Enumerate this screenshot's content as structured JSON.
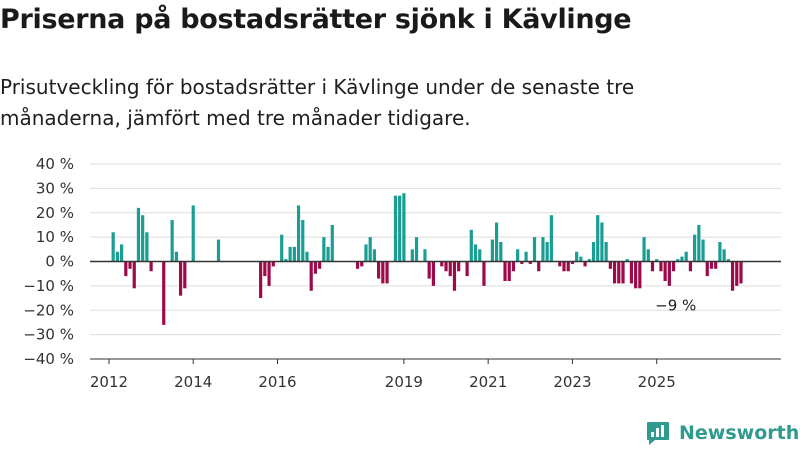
{
  "title": "Priserna på bostadsrätter sjönk i Kävlinge",
  "subtitle": "Prisutveckling för bostadsrätter i Kävlinge under de senaste tre månaderna, jämfört med tre månader tidigare.",
  "brand": {
    "name": "Newsworthy",
    "icon": "newsworthy-logo-icon",
    "color": "#2f9a8e"
  },
  "colors": {
    "positive": "#1a9e94",
    "negative": "#9c0a4a",
    "grid": "#dddddd",
    "axis": "#333333"
  },
  "chart_data": {
    "type": "bar",
    "x_unit": "year",
    "y_unit": "%",
    "ylim": [
      -40,
      40
    ],
    "y_ticks": [
      {
        "value": 40,
        "label": "40 %"
      },
      {
        "value": 30,
        "label": "30 %"
      },
      {
        "value": 20,
        "label": "20 %"
      },
      {
        "value": 10,
        "label": "10 %"
      },
      {
        "value": 0,
        "label": "0 %"
      },
      {
        "value": -10,
        "label": "−10 %"
      },
      {
        "value": -20,
        "label": "−20 %"
      },
      {
        "value": -30,
        "label": "−30 %"
      },
      {
        "value": -40,
        "label": "−40 %"
      }
    ],
    "x_ticks": [
      {
        "value": 2012,
        "label": "2012"
      },
      {
        "value": 2014,
        "label": "2014"
      },
      {
        "value": 2016,
        "label": "2016"
      },
      {
        "value": 2019,
        "label": "2019"
      },
      {
        "value": 2021,
        "label": "2021"
      },
      {
        "value": 2023,
        "label": "2023"
      },
      {
        "value": 2025,
        "label": "2025"
      }
    ],
    "grid": true,
    "annotation": {
      "x": 2025.2,
      "y": -9,
      "label": "−9 %"
    },
    "bars": [
      {
        "x": 2012.1,
        "y": 12
      },
      {
        "x": 2012.2,
        "y": 4
      },
      {
        "x": 2012.3,
        "y": 7
      },
      {
        "x": 2012.4,
        "y": -6
      },
      {
        "x": 2012.5,
        "y": -3
      },
      {
        "x": 2012.6,
        "y": -11
      },
      {
        "x": 2012.7,
        "y": 22
      },
      {
        "x": 2012.8,
        "y": 19
      },
      {
        "x": 2012.9,
        "y": 12
      },
      {
        "x": 2013.0,
        "y": -4
      },
      {
        "x": 2013.3,
        "y": -26
      },
      {
        "x": 2013.5,
        "y": 17
      },
      {
        "x": 2013.6,
        "y": 4
      },
      {
        "x": 2013.7,
        "y": -14
      },
      {
        "x": 2013.8,
        "y": -11
      },
      {
        "x": 2014.0,
        "y": 23
      },
      {
        "x": 2014.6,
        "y": 9
      },
      {
        "x": 2015.6,
        "y": -15
      },
      {
        "x": 2015.7,
        "y": -6
      },
      {
        "x": 2015.8,
        "y": -10
      },
      {
        "x": 2015.9,
        "y": -2
      },
      {
        "x": 2016.1,
        "y": 11
      },
      {
        "x": 2016.2,
        "y": 1
      },
      {
        "x": 2016.3,
        "y": 6
      },
      {
        "x": 2016.4,
        "y": 6
      },
      {
        "x": 2016.5,
        "y": 23
      },
      {
        "x": 2016.6,
        "y": 17
      },
      {
        "x": 2016.7,
        "y": 4
      },
      {
        "x": 2016.8,
        "y": -12
      },
      {
        "x": 2016.9,
        "y": -5
      },
      {
        "x": 2017.0,
        "y": -3
      },
      {
        "x": 2017.1,
        "y": 10
      },
      {
        "x": 2017.2,
        "y": 6
      },
      {
        "x": 2017.3,
        "y": 15
      },
      {
        "x": 2017.9,
        "y": -3
      },
      {
        "x": 2018.0,
        "y": -2
      },
      {
        "x": 2018.1,
        "y": 7
      },
      {
        "x": 2018.2,
        "y": 10
      },
      {
        "x": 2018.3,
        "y": 5
      },
      {
        "x": 2018.4,
        "y": -7
      },
      {
        "x": 2018.5,
        "y": -9
      },
      {
        "x": 2018.6,
        "y": -9
      },
      {
        "x": 2018.8,
        "y": 27
      },
      {
        "x": 2018.9,
        "y": 27
      },
      {
        "x": 2019.0,
        "y": 28
      },
      {
        "x": 2019.2,
        "y": 5
      },
      {
        "x": 2019.3,
        "y": 10
      },
      {
        "x": 2019.5,
        "y": 5
      },
      {
        "x": 2019.6,
        "y": -7
      },
      {
        "x": 2019.7,
        "y": -10
      },
      {
        "x": 2019.9,
        "y": -2
      },
      {
        "x": 2020.0,
        "y": -4
      },
      {
        "x": 2020.1,
        "y": -6
      },
      {
        "x": 2020.2,
        "y": -12
      },
      {
        "x": 2020.3,
        "y": -4
      },
      {
        "x": 2020.5,
        "y": -6
      },
      {
        "x": 2020.6,
        "y": 13
      },
      {
        "x": 2020.7,
        "y": 7
      },
      {
        "x": 2020.8,
        "y": 5
      },
      {
        "x": 2020.9,
        "y": -10
      },
      {
        "x": 2021.1,
        "y": 9
      },
      {
        "x": 2021.2,
        "y": 16
      },
      {
        "x": 2021.3,
        "y": 8
      },
      {
        "x": 2021.4,
        "y": -8
      },
      {
        "x": 2021.5,
        "y": -8
      },
      {
        "x": 2021.6,
        "y": -4
      },
      {
        "x": 2021.7,
        "y": 5
      },
      {
        "x": 2021.8,
        "y": -1
      },
      {
        "x": 2021.9,
        "y": 4
      },
      {
        "x": 2022.0,
        "y": -1
      },
      {
        "x": 2022.1,
        "y": 10
      },
      {
        "x": 2022.2,
        "y": -4
      },
      {
        "x": 2022.3,
        "y": 10
      },
      {
        "x": 2022.4,
        "y": 8
      },
      {
        "x": 2022.5,
        "y": 19
      },
      {
        "x": 2022.7,
        "y": -2
      },
      {
        "x": 2022.8,
        "y": -4
      },
      {
        "x": 2022.9,
        "y": -4
      },
      {
        "x": 2023.0,
        "y": -1
      },
      {
        "x": 2023.1,
        "y": 4
      },
      {
        "x": 2023.2,
        "y": 2
      },
      {
        "x": 2023.3,
        "y": -2
      },
      {
        "x": 2023.4,
        "y": 1
      },
      {
        "x": 2023.5,
        "y": 8
      },
      {
        "x": 2023.6,
        "y": 19
      },
      {
        "x": 2023.7,
        "y": 16
      },
      {
        "x": 2023.8,
        "y": 8
      },
      {
        "x": 2023.9,
        "y": -3
      },
      {
        "x": 2024.0,
        "y": -9
      },
      {
        "x": 2024.1,
        "y": -9
      },
      {
        "x": 2024.2,
        "y": -9
      },
      {
        "x": 2024.3,
        "y": 1
      },
      {
        "x": 2024.4,
        "y": -9
      },
      {
        "x": 2024.5,
        "y": -11
      },
      {
        "x": 2024.6,
        "y": -11
      },
      {
        "x": 2024.7,
        "y": 10
      },
      {
        "x": 2024.8,
        "y": 5
      },
      {
        "x": 2024.9,
        "y": -4
      },
      {
        "x": 2025.0,
        "y": 1
      },
      {
        "x": 2025.1,
        "y": -4
      },
      {
        "x": 2025.2,
        "y": -8
      },
      {
        "x": 2025.3,
        "y": -10
      },
      {
        "x": 2025.4,
        "y": -4
      },
      {
        "x": 2025.5,
        "y": 1
      },
      {
        "x": 2025.6,
        "y": 2
      },
      {
        "x": 2025.7,
        "y": 4
      },
      {
        "x": 2025.8,
        "y": -4
      },
      {
        "x": 2025.9,
        "y": 11
      },
      {
        "x": 2026.0,
        "y": 15
      },
      {
        "x": 2026.1,
        "y": 9
      },
      {
        "x": 2026.2,
        "y": -6
      },
      {
        "x": 2026.3,
        "y": -3
      },
      {
        "x": 2026.4,
        "y": -3
      },
      {
        "x": 2026.5,
        "y": 8
      },
      {
        "x": 2026.6,
        "y": 5
      },
      {
        "x": 2026.7,
        "y": 1
      },
      {
        "x": 2026.8,
        "y": -12
      },
      {
        "x": 2026.9,
        "y": -10
      },
      {
        "x": 2027.0,
        "y": -9
      }
    ]
  }
}
